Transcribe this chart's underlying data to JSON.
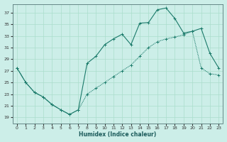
{
  "xlabel": "Humidex (Indice chaleur)",
  "bg_color": "#cceee8",
  "grid_color": "#aaddcc",
  "line_color": "#1a7a6a",
  "xlim": [
    -0.5,
    23.5
  ],
  "ylim": [
    18.0,
    38.5
  ],
  "xticks": [
    0,
    1,
    2,
    3,
    4,
    5,
    6,
    7,
    8,
    9,
    10,
    11,
    12,
    13,
    14,
    15,
    16,
    17,
    18,
    19,
    20,
    21,
    22,
    23
  ],
  "yticks": [
    19,
    21,
    23,
    25,
    27,
    29,
    31,
    33,
    35,
    37
  ],
  "line1_x": [
    0,
    1,
    2,
    3,
    4,
    5,
    6,
    7,
    8,
    9,
    10,
    11,
    12,
    13,
    14,
    15,
    16,
    17,
    18,
    19,
    20,
    21,
    22,
    23
  ],
  "line1_y": [
    27.5,
    25.0,
    23.3,
    22.5,
    21.2,
    20.3,
    19.5,
    20.3,
    28.3,
    29.5,
    31.5,
    32.5,
    33.3,
    31.5,
    35.2,
    35.3,
    37.5,
    37.8,
    36.0,
    33.5,
    33.8,
    34.3,
    30.0,
    27.5
  ],
  "line2_x": [
    0,
    1,
    2,
    3,
    4,
    5,
    6,
    7,
    8,
    9,
    10,
    11,
    12,
    13,
    14,
    15,
    16,
    17,
    18,
    19,
    20,
    21,
    22,
    23
  ],
  "line2_y": [
    27.5,
    25.0,
    23.3,
    22.5,
    21.2,
    20.3,
    19.5,
    20.3,
    23.0,
    24.0,
    25.0,
    26.0,
    27.0,
    28.0,
    29.5,
    31.0,
    32.0,
    32.5,
    32.8,
    33.2,
    33.8,
    27.5,
    26.5,
    26.3
  ]
}
